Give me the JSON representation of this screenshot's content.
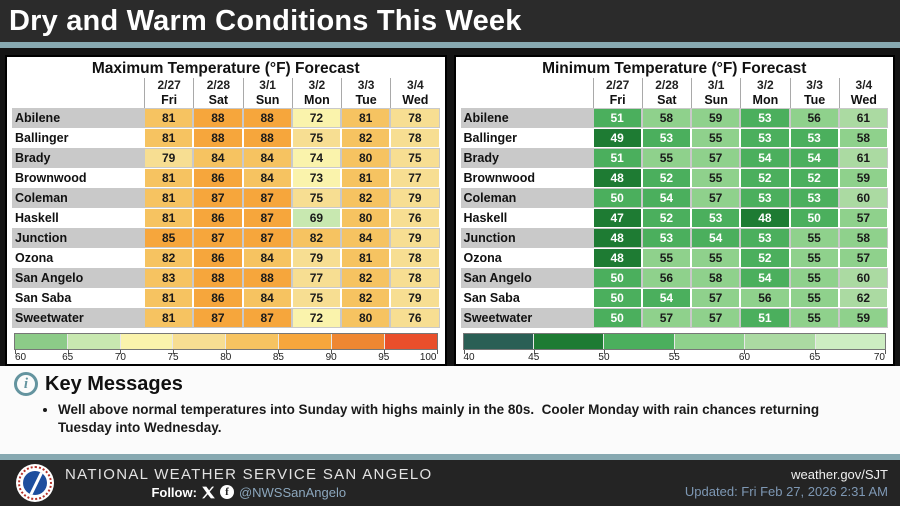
{
  "banner": {
    "title": "Dry and Warm Conditions This Week"
  },
  "tables": [
    {
      "title": "Maximum Temperature (°F) Forecast",
      "columns": [
        {
          "date": "2/27",
          "day": "Fri"
        },
        {
          "date": "2/28",
          "day": "Sat"
        },
        {
          "date": "3/1",
          "day": "Sun"
        },
        {
          "date": "3/2",
          "day": "Mon"
        },
        {
          "date": "3/3",
          "day": "Tue"
        },
        {
          "date": "3/4",
          "day": "Wed"
        }
      ],
      "rows": [
        {
          "city": "Abilene",
          "values": [
            81,
            88,
            88,
            72,
            81,
            78
          ]
        },
        {
          "city": "Ballinger",
          "values": [
            81,
            88,
            88,
            75,
            82,
            78
          ]
        },
        {
          "city": "Brady",
          "values": [
            79,
            84,
            84,
            74,
            80,
            75
          ]
        },
        {
          "city": "Brownwood",
          "values": [
            81,
            86,
            84,
            73,
            81,
            77
          ]
        },
        {
          "city": "Coleman",
          "values": [
            81,
            87,
            87,
            75,
            82,
            79
          ]
        },
        {
          "city": "Haskell",
          "values": [
            81,
            86,
            87,
            69,
            80,
            76
          ]
        },
        {
          "city": "Junction",
          "values": [
            85,
            87,
            87,
            82,
            84,
            79
          ]
        },
        {
          "city": "Ozona",
          "values": [
            82,
            86,
            84,
            79,
            81,
            78
          ]
        },
        {
          "city": "San Angelo",
          "values": [
            83,
            88,
            88,
            77,
            82,
            78
          ]
        },
        {
          "city": "San Saba",
          "values": [
            81,
            86,
            84,
            75,
            82,
            79
          ]
        },
        {
          "city": "Sweetwater",
          "values": [
            81,
            87,
            87,
            72,
            80,
            76
          ]
        }
      ],
      "scale": {
        "min": 60,
        "max": 100,
        "step": 5,
        "labels": [
          "60",
          "65",
          "70",
          "75",
          "80",
          "85",
          "90",
          "95",
          "100"
        ],
        "colors": [
          "#8CCB88",
          "#C8E8B0",
          "#FAF3AC",
          "#F7DE92",
          "#F6C361",
          "#F6A63C",
          "#EF8732",
          "#E94F2B"
        ]
      }
    },
    {
      "title": "Minimum Temperature (°F) Forecast",
      "columns": [
        {
          "date": "2/27",
          "day": "Fri"
        },
        {
          "date": "2/28",
          "day": "Sat"
        },
        {
          "date": "3/1",
          "day": "Sun"
        },
        {
          "date": "3/2",
          "day": "Mon"
        },
        {
          "date": "3/3",
          "day": "Tue"
        },
        {
          "date": "3/4",
          "day": "Wed"
        }
      ],
      "rows": [
        {
          "city": "Abilene",
          "values": [
            51,
            58,
            59,
            53,
            56,
            61
          ]
        },
        {
          "city": "Ballinger",
          "values": [
            49,
            53,
            55,
            53,
            53,
            58
          ]
        },
        {
          "city": "Brady",
          "values": [
            51,
            55,
            57,
            54,
            54,
            61
          ]
        },
        {
          "city": "Brownwood",
          "values": [
            48,
            52,
            55,
            52,
            52,
            59
          ]
        },
        {
          "city": "Coleman",
          "values": [
            50,
            54,
            57,
            53,
            53,
            60
          ]
        },
        {
          "city": "Haskell",
          "values": [
            47,
            52,
            53,
            48,
            50,
            57
          ]
        },
        {
          "city": "Junction",
          "values": [
            48,
            53,
            54,
            53,
            55,
            58
          ]
        },
        {
          "city": "Ozona",
          "values": [
            48,
            55,
            55,
            52,
            55,
            57
          ]
        },
        {
          "city": "San Angelo",
          "values": [
            50,
            56,
            58,
            54,
            55,
            60
          ]
        },
        {
          "city": "San Saba",
          "values": [
            50,
            54,
            57,
            56,
            55,
            62
          ]
        },
        {
          "city": "Sweetwater",
          "values": [
            50,
            57,
            57,
            51,
            55,
            59
          ]
        }
      ],
      "scale": {
        "min": 40,
        "max": 70,
        "step": 5,
        "labels": [
          "40",
          "45",
          "50",
          "55",
          "60",
          "65",
          "70"
        ],
        "colors": [
          "#2A5F55",
          "#1E7B33",
          "#4BAF5D",
          "#8FD18C",
          "#ABDAA2",
          "#CDEDC2"
        ]
      }
    }
  ],
  "key_messages": {
    "heading": "Key Messages",
    "info_icon_glyph": "i",
    "bullets": [
      "Well above normal temperatures into Sunday with highs mainly in the 80s.  Cooler Monday with rain chances returning Tuesday into Wednesday."
    ]
  },
  "footer": {
    "org": "NATIONAL WEATHER SERVICE SAN ANGELO",
    "follow_label": "Follow:",
    "handle": "@NWSSanAngelo",
    "site": "weather.gov/SJT",
    "updated": "Updated: Fri Feb 27, 2026 2:31 AM"
  },
  "chart_data": [
    {
      "type": "heatmap",
      "title": "Maximum Temperature (°F) Forecast",
      "x": [
        "2/27 Fri",
        "2/28 Sat",
        "3/1 Sun",
        "3/2 Mon",
        "3/3 Tue",
        "3/4 Wed"
      ],
      "y": [
        "Abilene",
        "Ballinger",
        "Brady",
        "Brownwood",
        "Coleman",
        "Haskell",
        "Junction",
        "Ozona",
        "San Angelo",
        "San Saba",
        "Sweetwater"
      ],
      "values": [
        [
          81,
          88,
          88,
          72,
          81,
          78
        ],
        [
          81,
          88,
          88,
          75,
          82,
          78
        ],
        [
          79,
          84,
          84,
          74,
          80,
          75
        ],
        [
          81,
          86,
          84,
          73,
          81,
          77
        ],
        [
          81,
          87,
          87,
          75,
          82,
          79
        ],
        [
          81,
          86,
          87,
          69,
          80,
          76
        ],
        [
          85,
          87,
          87,
          82,
          84,
          79
        ],
        [
          82,
          86,
          84,
          79,
          81,
          78
        ],
        [
          83,
          88,
          88,
          77,
          82,
          78
        ],
        [
          81,
          86,
          84,
          75,
          82,
          79
        ],
        [
          81,
          87,
          87,
          72,
          80,
          76
        ]
      ],
      "colorbar_range": [
        60,
        100
      ],
      "colorbar_ticks": [
        60,
        65,
        70,
        75,
        80,
        85,
        90,
        95,
        100
      ],
      "legend_position": "bottom"
    },
    {
      "type": "heatmap",
      "title": "Minimum Temperature (°F) Forecast",
      "x": [
        "2/27 Fri",
        "2/28 Sat",
        "3/1 Sun",
        "3/2 Mon",
        "3/3 Tue",
        "3/4 Wed"
      ],
      "y": [
        "Abilene",
        "Ballinger",
        "Brady",
        "Brownwood",
        "Coleman",
        "Haskell",
        "Junction",
        "Ozona",
        "San Angelo",
        "San Saba",
        "Sweetwater"
      ],
      "values": [
        [
          51,
          58,
          59,
          53,
          56,
          61
        ],
        [
          49,
          53,
          55,
          53,
          53,
          58
        ],
        [
          51,
          55,
          57,
          54,
          54,
          61
        ],
        [
          48,
          52,
          55,
          52,
          52,
          59
        ],
        [
          50,
          54,
          57,
          53,
          53,
          60
        ],
        [
          47,
          52,
          53,
          48,
          50,
          57
        ],
        [
          48,
          53,
          54,
          53,
          55,
          58
        ],
        [
          48,
          55,
          55,
          52,
          55,
          57
        ],
        [
          50,
          56,
          58,
          54,
          55,
          60
        ],
        [
          50,
          54,
          57,
          56,
          55,
          62
        ],
        [
          50,
          57,
          57,
          51,
          55,
          59
        ]
      ],
      "colorbar_range": [
        40,
        70
      ],
      "colorbar_ticks": [
        40,
        45,
        50,
        55,
        60,
        65,
        70
      ],
      "legend_position": "bottom"
    }
  ]
}
